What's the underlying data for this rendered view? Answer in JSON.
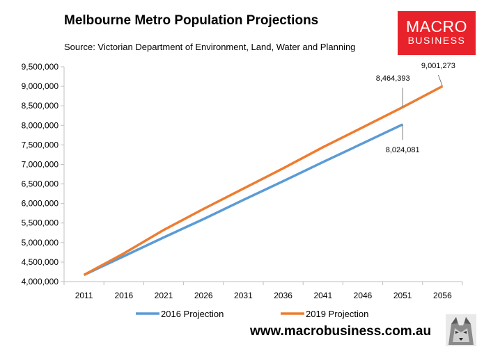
{
  "header": {
    "title": "Melbourne Metro Population Projections",
    "subtitle": "Source: Victorian Department of Environment, Land, Water and Planning"
  },
  "logo": {
    "line1": "MACRO",
    "line2": "BUSINESS",
    "color": "#e8222a"
  },
  "footer": {
    "url": "www.macrobusiness.com.au"
  },
  "chart_data": {
    "type": "line",
    "title": "Melbourne Metro Population Projections",
    "subtitle": "Source: Victorian Department of Environment, Land, Water and Planning",
    "xlabel": "",
    "ylabel": "",
    "x": [
      2011,
      2016,
      2021,
      2026,
      2031,
      2036,
      2041,
      2046,
      2051,
      2056
    ],
    "xlim": [
      2011,
      2056
    ],
    "ylim": [
      4000000,
      9500000
    ],
    "yticks": [
      4000000,
      4500000,
      5000000,
      5500000,
      6000000,
      6500000,
      7000000,
      7500000,
      8000000,
      8500000,
      9000000,
      9500000
    ],
    "ytick_labels": [
      "4,000,000",
      "4,500,000",
      "5,000,000",
      "5,500,000",
      "6,000,000",
      "6,500,000",
      "7,000,000",
      "7,500,000",
      "8,000,000",
      "8,500,000",
      "9,000,000",
      "9,500,000"
    ],
    "grid": false,
    "legend_position": "bottom",
    "series": [
      {
        "name": "2016 Projection",
        "color": "#5b9bd5",
        "values": [
          4170000,
          4650000,
          5130000,
          5600000,
          6090000,
          6570000,
          7060000,
          7540000,
          8024081,
          null
        ]
      },
      {
        "name": "2019 Projection",
        "color": "#ed7d31",
        "values": [
          4170000,
          4720000,
          5320000,
          5860000,
          6380000,
          6900000,
          7440000,
          7950000,
          8464393,
          9001273
        ]
      }
    ],
    "annotations": [
      {
        "text": "8,024,081",
        "series": 0,
        "x": 2051
      },
      {
        "text": "8,464,393",
        "series": 1,
        "x": 2051
      },
      {
        "text": "9,001,273",
        "series": 1,
        "x": 2056
      }
    ]
  }
}
